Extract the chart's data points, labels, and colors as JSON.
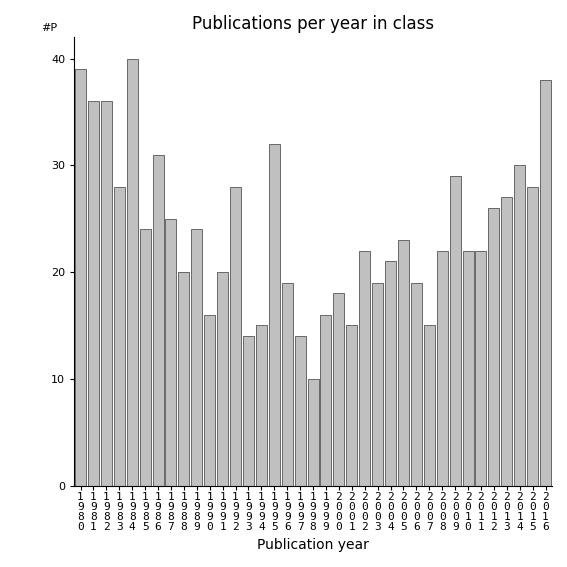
{
  "categories": [
    "1980",
    "1981",
    "1982",
    "1983",
    "1984",
    "1985",
    "1986",
    "1987",
    "1988",
    "1989",
    "1990",
    "1991",
    "1992",
    "1993",
    "1994",
    "1995",
    "1996",
    "1997",
    "1998",
    "1999",
    "2000",
    "2001",
    "2002",
    "2003",
    "2004",
    "2005",
    "2006",
    "2007",
    "2008",
    "2009",
    "2010",
    "2011",
    "2012",
    "2013",
    "2014",
    "2015",
    "2016"
  ],
  "values": [
    39,
    36,
    36,
    28,
    40,
    24,
    31,
    25,
    20,
    24,
    16,
    20,
    28,
    14,
    15,
    32,
    19,
    14,
    10,
    16,
    18,
    15,
    22,
    19,
    21,
    23,
    19,
    15,
    22,
    29,
    22,
    22,
    26,
    27,
    30,
    28,
    38
  ],
  "bar_color": "#c0c0c0",
  "bar_edgecolor": "#555555",
  "title": "Publications per year in class",
  "xlabel": "Publication year",
  "ylabel": "#P",
  "ylim": [
    0,
    42
  ],
  "yticks": [
    0,
    10,
    20,
    30,
    40
  ],
  "background_color": "#ffffff",
  "title_fontsize": 12,
  "label_fontsize": 10,
  "tick_fontsize": 8
}
